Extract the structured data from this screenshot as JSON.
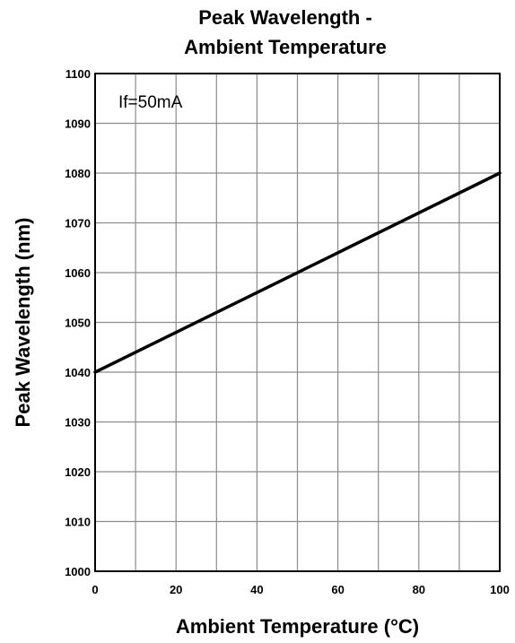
{
  "chart_data": {
    "type": "line",
    "title_lines": [
      "Peak Wavelength -",
      "Ambient Temperature"
    ],
    "xlabel": "Ambient Temperature (°C)",
    "ylabel": "Peak Wavelength (nm)",
    "annotation": "If=50mA",
    "xlim": [
      0,
      100
    ],
    "ylim": [
      1000,
      1100
    ],
    "x_ticks": [
      0,
      20,
      40,
      60,
      80,
      100
    ],
    "y_ticks": [
      1000,
      1010,
      1020,
      1030,
      1040,
      1050,
      1060,
      1070,
      1080,
      1090,
      1100
    ],
    "x_grid": [
      0,
      10,
      20,
      30,
      40,
      50,
      60,
      70,
      80,
      90,
      100
    ],
    "y_grid": [
      1000,
      1010,
      1020,
      1030,
      1040,
      1050,
      1060,
      1070,
      1080,
      1090,
      1100
    ],
    "grid": true,
    "series": [
      {
        "x": [
          0,
          100
        ],
        "y": [
          1040,
          1080
        ],
        "color": "#000000"
      }
    ]
  }
}
